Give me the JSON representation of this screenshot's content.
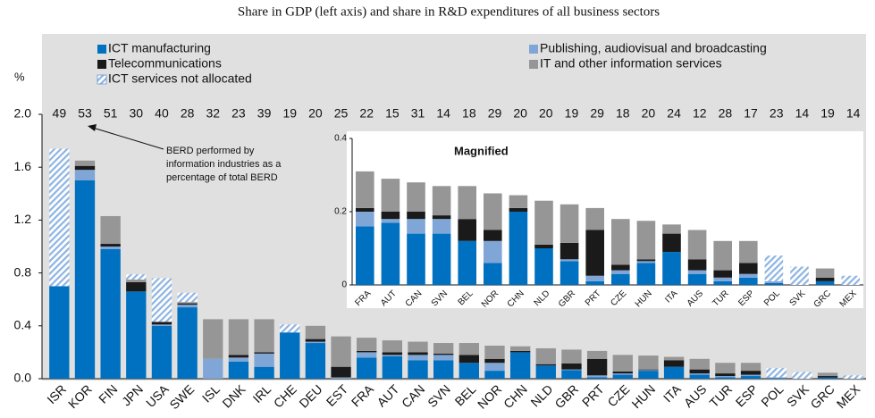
{
  "chart_data": {
    "type": "stacked_bar",
    "title": "Share in GDP (left axis) and share in R&D expenditures of all business sectors",
    "y_label": "%",
    "categories": [
      "ISR",
      "KOR",
      "FIN",
      "JPN",
      "USA",
      "SWE",
      "ISL",
      "DNK",
      "IRL",
      "CHE",
      "DEU",
      "EST",
      "FRA",
      "AUT",
      "CAN",
      "SVN",
      "BEL",
      "NOR",
      "CHN",
      "NLD",
      "GBR",
      "PRT",
      "CZE",
      "HUN",
      "ITA",
      "AUS",
      "TUR",
      "ESP",
      "POL",
      "SVK",
      "GRC",
      "MEX"
    ],
    "ylim": [
      0,
      2.0
    ],
    "yticks": [
      {
        "value": 0,
        "label": "0.0"
      },
      0.4,
      0.8,
      1.2,
      1.6,
      {
        "value": 2.0,
        "label": "2.0"
      }
    ],
    "series": [
      {
        "name": "ICT manufacturing",
        "color": "#0070c0",
        "values": [
          0.7,
          1.5,
          0.98,
          0.66,
          0.4,
          0.54,
          0.0,
          0.13,
          0.09,
          0.35,
          0.27,
          0.0,
          0.16,
          0.17,
          0.14,
          0.14,
          0.12,
          0.06,
          0.2,
          0.1,
          0.065,
          0.01,
          0.03,
          0.06,
          0.09,
          0.03,
          0.01,
          0.02,
          0.005,
          0,
          0.01,
          0
        ]
      },
      {
        "name": "Publishing, audiovisual and broadcasting",
        "color": "#7fa6d6",
        "values": [
          0,
          0.08,
          0.02,
          0,
          0.01,
          0.02,
          0.15,
          0.03,
          0.1,
          0,
          0.01,
          0.01,
          0.04,
          0.01,
          0.04,
          0.04,
          0,
          0.06,
          0,
          0,
          0.005,
          0.015,
          0.01,
          0.005,
          0,
          0.01,
          0.01,
          0.01,
          0.005,
          0,
          0,
          0
        ]
      },
      {
        "name": "Telecommunications",
        "color": "#1a1a1a",
        "values": [
          0,
          0.03,
          0.02,
          0.07,
          0.02,
          0.01,
          0,
          0.02,
          0.01,
          0,
          0.02,
          0.08,
          0.01,
          0.02,
          0.02,
          0.01,
          0.06,
          0.03,
          0.01,
          0.01,
          0.045,
          0.125,
          0.015,
          0.005,
          0.05,
          0.03,
          0.02,
          0.03,
          0,
          0,
          0.01,
          0
        ]
      },
      {
        "name": "IT and other information services",
        "color": "#969696",
        "values": [
          0,
          0.04,
          0.21,
          0.02,
          0,
          0.01,
          0.3,
          0.27,
          0.25,
          0,
          0.1,
          0.23,
          0.1,
          0.09,
          0.08,
          0.08,
          0.09,
          0.1,
          0.035,
          0.12,
          0.105,
          0.06,
          0.125,
          0.105,
          0.025,
          0.08,
          0.08,
          0.06,
          0,
          0,
          0.025,
          0
        ]
      },
      {
        "name": "ICT services not allocated",
        "color": "#8db4e2",
        "hatch": true,
        "values": [
          1.04,
          0,
          0,
          0.04,
          0.33,
          0.07,
          0,
          0,
          0,
          0.06,
          0,
          0,
          0,
          0,
          0,
          0,
          0,
          0,
          0,
          0,
          0,
          0,
          0,
          0,
          0,
          0,
          0,
          0,
          0.07,
          0.05,
          0,
          0.025
        ]
      }
    ],
    "top_values": [
      49,
      53,
      51,
      30,
      40,
      28,
      32,
      23,
      39,
      19,
      20,
      25,
      22,
      15,
      31,
      14,
      18,
      29,
      20,
      20,
      19,
      29,
      18,
      20,
      24,
      12,
      28,
      17,
      23,
      14,
      19,
      14
    ],
    "annotation": [
      "BERD performed by",
      "information industries as a",
      "percentage of total BERD"
    ],
    "inset": {
      "title": "Magnified",
      "categories": [
        "FRA",
        "AUT",
        "CAN",
        "SVN",
        "BEL",
        "NOR",
        "CHN",
        "NLD",
        "GBR",
        "PRT",
        "CZE",
        "HUN",
        "ITA",
        "AUS",
        "TUR",
        "ESP",
        "POL",
        "SVK",
        "GRC",
        "MEX"
      ],
      "ylim": [
        0,
        0.4
      ],
      "yticks": [
        0,
        0.2,
        0.4
      ]
    }
  }
}
